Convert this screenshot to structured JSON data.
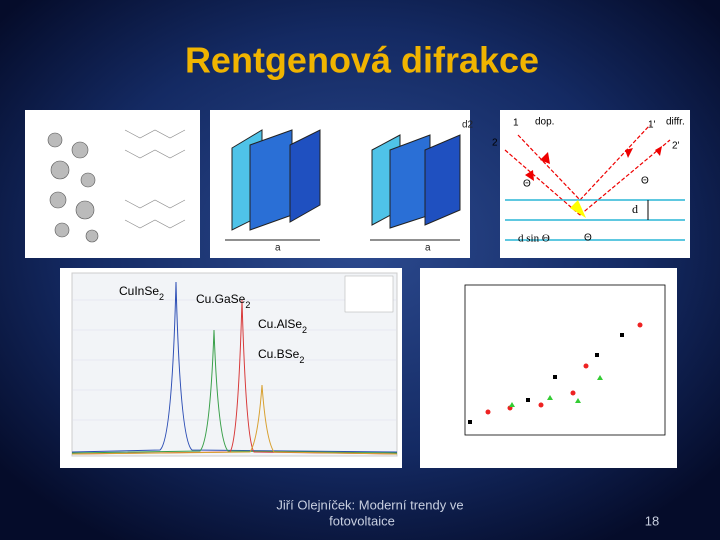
{
  "header": {
    "title": "Rentgenová difrakce"
  },
  "diffraction": {
    "labels": [
      "1",
      "dop.",
      "1'",
      "diffr.",
      "2",
      "2'",
      "Θ",
      "Θ",
      "d",
      "d sin Θ",
      "Θ"
    ]
  },
  "crystal": {
    "labels": [
      "d2",
      "a",
      "a"
    ]
  },
  "spectrum": {
    "labels": [
      {
        "text": "CuInSe",
        "sub": "2"
      },
      {
        "text": "Cu.GaSe",
        "sub": "2"
      },
      {
        "text": "Cu.AlSe",
        "sub": "2"
      },
      {
        "text": "Cu.BSe",
        "sub": "2"
      }
    ]
  },
  "footer": {
    "author_line1": "Jiří Olejníček: Moderní trendy ve",
    "author_line2": "fotovoltaice",
    "page": "18"
  }
}
